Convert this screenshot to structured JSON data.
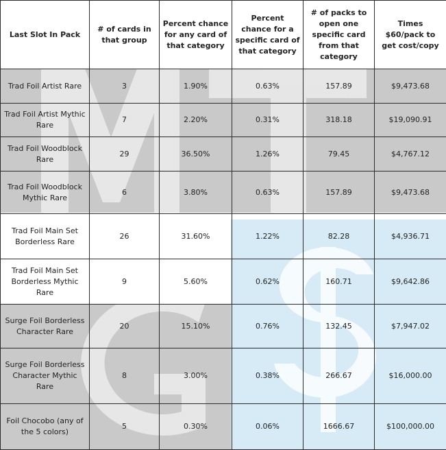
{
  "table": {
    "headers": [
      "Last Slot In Pack",
      "# of cards in that group",
      "Percent chance for any card of that category",
      "Percent chance for a specific card of that category",
      "# of packs to open one specific card from that category",
      "Times $60/pack to get cost/copy"
    ],
    "rows": [
      [
        "Trad Foil Artist Rare",
        "3",
        "1.90%",
        "0.63%",
        "157.89",
        "$9,473.68"
      ],
      [
        "Trad Foil Artist Mythic Rare",
        "7",
        "2.20%",
        "0.31%",
        "318.18",
        "$19,090.91"
      ],
      [
        "Trad Foil Woodblock Rare",
        "29",
        "36.50%",
        "1.26%",
        "79.45",
        "$4,767.12"
      ],
      [
        "Trad Foil Woodblock Mythic Rare",
        "6",
        "3.80%",
        "0.63%",
        "157.89",
        "$9,473.68"
      ],
      [
        "Trad Foil Main Set Borderless Rare",
        "26",
        "31.60%",
        "1.22%",
        "82.28",
        "$4,936.71"
      ],
      [
        "Trad Foil Main Set Borderless Mythic Rare",
        "9",
        "5.60%",
        "0.62%",
        "160.71",
        "$9,642.86"
      ],
      [
        "Surge Foil Borderless Character Rare",
        "20",
        "15.10%",
        "0.76%",
        "132.45",
        "$7,947.02"
      ],
      [
        "Surge Foil Borderless Character Mythic Rare",
        "8",
        "3.00%",
        "0.38%",
        "266.67",
        "$16,000.00"
      ],
      [
        "Foil Chocobo (any of the 5 colors)",
        "5",
        "0.30%",
        "0.06%",
        "1666.67",
        "$100,000.00"
      ]
    ]
  },
  "watermark": {
    "letters": [
      "M",
      "T",
      "G",
      "$"
    ],
    "colors": {
      "gray": "#c9c9c9",
      "white": "#ffffff",
      "blue": "#d6ebf6"
    }
  }
}
